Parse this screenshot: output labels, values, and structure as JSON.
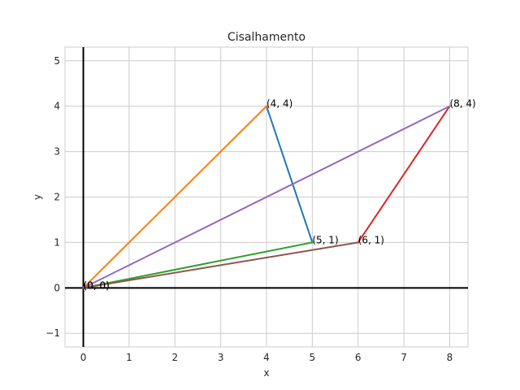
{
  "chart_data": {
    "type": "line",
    "title": "Cisalhamento",
    "xlabel": "x",
    "ylabel": "y",
    "xlim": [
      -0.4,
      8.4
    ],
    "ylim": [
      -1.3,
      5.3
    ],
    "xticks": [
      0,
      1,
      2,
      3,
      4,
      5,
      6,
      7,
      8
    ],
    "yticks": [
      -1,
      0,
      1,
      2,
      3,
      4,
      5
    ],
    "xtick_labels": [
      "0",
      "1",
      "2",
      "3",
      "4",
      "5",
      "6",
      "7",
      "8"
    ],
    "ytick_labels": [
      "−1",
      "0",
      "1",
      "2",
      "3",
      "4",
      "5"
    ],
    "grid": true,
    "zero_axes": true,
    "series": [
      {
        "color": "#1f77b4",
        "x": [
          4,
          5
        ],
        "y": [
          4,
          1
        ]
      },
      {
        "color": "#ff7f0e",
        "x": [
          0,
          4
        ],
        "y": [
          0,
          4
        ]
      },
      {
        "color": "#2ca02c",
        "x": [
          0,
          5
        ],
        "y": [
          0,
          1
        ]
      },
      {
        "color": "#d62728",
        "x": [
          6,
          8
        ],
        "y": [
          1,
          4
        ]
      },
      {
        "color": "#9467bd",
        "x": [
          0,
          8
        ],
        "y": [
          0,
          4
        ]
      },
      {
        "color": "#8c564b",
        "x": [
          0,
          6
        ],
        "y": [
          0,
          1
        ]
      }
    ],
    "annotations": [
      {
        "text": "(4, 4)",
        "x": 4,
        "y": 4
      },
      {
        "text": "(5, 1)",
        "x": 5,
        "y": 1
      },
      {
        "text": "(0, 0)",
        "x": 0,
        "y": 0
      },
      {
        "text": "(8, 4)",
        "x": 8,
        "y": 4
      },
      {
        "text": "(6, 1)",
        "x": 6,
        "y": 1
      },
      {
        "text": "(0, 0)",
        "x": 0,
        "y": 0
      }
    ]
  }
}
